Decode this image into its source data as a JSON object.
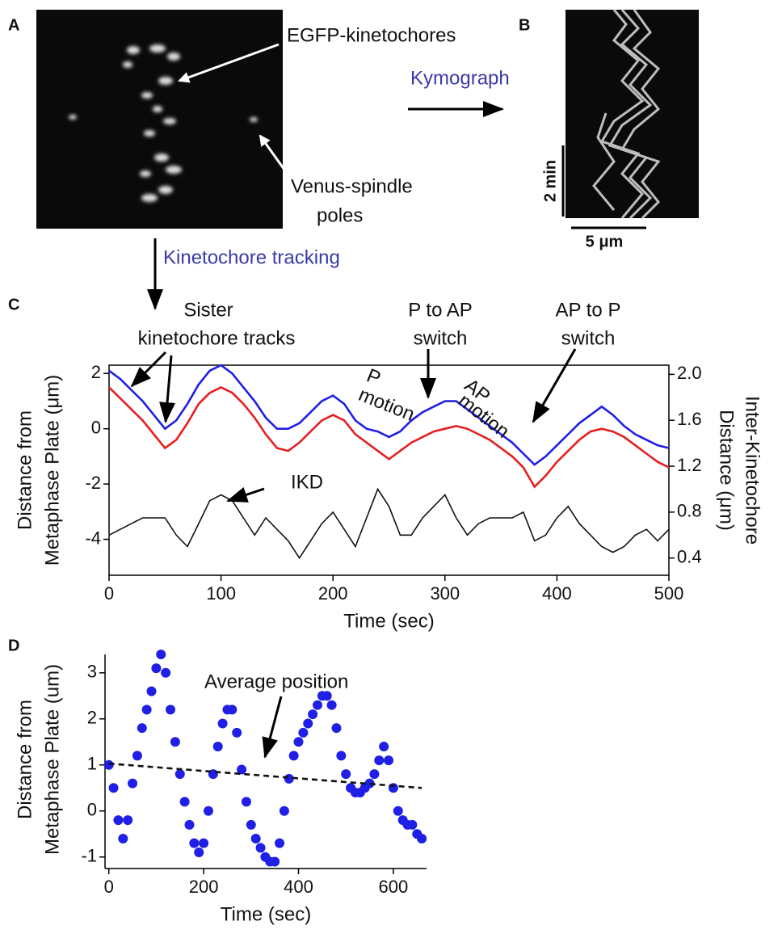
{
  "panels": {
    "A": {
      "label": "A",
      "annotations": [
        "EGFP-kinetochores",
        "Venus-spindle",
        "poles"
      ]
    },
    "B": {
      "label": "B",
      "scale_time": "2 min",
      "scale_length": "5 μm"
    },
    "kymograph_label": "Kymograph",
    "tracking_label": "Kinetochore tracking"
  },
  "chart_data": [
    {
      "type": "line",
      "panel": "C",
      "x_label": "Time (sec)",
      "y_label": [
        "Distance from",
        "Metaphase Plate (μm)"
      ],
      "y2_label": [
        "Inter-Kinetochore",
        "Distance (μm)"
      ],
      "annotations": [
        "Sister",
        "kinetochore tracks",
        "P to AP",
        "switch",
        "AP to P",
        "switch",
        "P",
        "motion",
        "AP",
        "motion",
        "IKD"
      ],
      "x": [
        0,
        10,
        20,
        30,
        40,
        50,
        60,
        70,
        80,
        90,
        100,
        110,
        120,
        130,
        140,
        150,
        160,
        170,
        180,
        190,
        200,
        210,
        220,
        230,
        240,
        250,
        260,
        270,
        280,
        290,
        300,
        310,
        320,
        330,
        340,
        350,
        360,
        370,
        380,
        390,
        400,
        410,
        420,
        430,
        440,
        450,
        460,
        470,
        480,
        490,
        500
      ],
      "series": [
        {
          "color": "#1f1fe6",
          "values": [
            2.1,
            1.8,
            1.4,
            1.0,
            0.5,
            0.0,
            0.3,
            0.9,
            1.6,
            2.1,
            2.3,
            2.0,
            1.5,
            1.0,
            0.4,
            0.0,
            0.0,
            0.2,
            0.6,
            1.0,
            1.2,
            0.9,
            0.3,
            0.0,
            -0.1,
            -0.3,
            -0.1,
            0.3,
            0.6,
            0.8,
            1.0,
            1.0,
            0.7,
            0.4,
            0.1,
            -0.2,
            -0.5,
            -0.9,
            -1.3,
            -1.0,
            -0.6,
            -0.2,
            0.2,
            0.5,
            0.8,
            0.5,
            0.1,
            -0.2,
            -0.4,
            -0.6,
            -0.7
          ]
        },
        {
          "color": "#e61f1f",
          "values": [
            1.5,
            1.1,
            0.7,
            0.3,
            -0.2,
            -0.7,
            -0.4,
            0.2,
            0.9,
            1.3,
            1.5,
            1.3,
            0.9,
            0.4,
            -0.2,
            -0.7,
            -0.8,
            -0.5,
            -0.1,
            0.3,
            0.5,
            0.3,
            -0.2,
            -0.5,
            -0.8,
            -1.1,
            -0.8,
            -0.5,
            -0.3,
            -0.1,
            0.0,
            0.1,
            0.0,
            -0.2,
            -0.4,
            -0.7,
            -1.0,
            -1.4,
            -2.1,
            -1.7,
            -1.2,
            -0.8,
            -0.4,
            -0.1,
            0.0,
            -0.1,
            -0.3,
            -0.6,
            -0.9,
            -1.2,
            -1.4
          ]
        },
        {
          "color": "#111111",
          "axis": "y2",
          "values": [
            0.6,
            0.65,
            0.7,
            0.75,
            0.75,
            0.75,
            0.6,
            0.5,
            0.7,
            0.9,
            0.95,
            0.9,
            0.75,
            0.6,
            0.75,
            0.65,
            0.55,
            0.4,
            0.55,
            0.7,
            0.8,
            0.65,
            0.5,
            0.75,
            1.0,
            0.85,
            0.6,
            0.6,
            0.75,
            0.85,
            0.95,
            0.75,
            0.6,
            0.7,
            0.75,
            0.75,
            0.75,
            0.8,
            0.55,
            0.6,
            0.75,
            0.85,
            0.7,
            0.6,
            0.5,
            0.45,
            0.5,
            0.6,
            0.65,
            0.55,
            0.65
          ]
        }
      ],
      "xlim": [
        0,
        500
      ],
      "xticks": [
        0,
        100,
        200,
        300,
        400,
        500
      ],
      "ylim": [
        -5.3,
        2.3
      ],
      "yticks": [
        -4,
        -2,
        0,
        2
      ],
      "y2lim": [
        0.25,
        2.08
      ],
      "y2ticks": [
        0.4,
        0.8,
        1.2,
        1.6,
        {
          "value": 2,
          "label": "2.0"
        }
      ],
      "frame": true
    },
    {
      "type": "line",
      "panel": "D",
      "x_label": "Time (sec)",
      "y_label": [
        "Distance from",
        "Metaphase Plate (um)"
      ],
      "annotations": [
        "Average position"
      ],
      "x": [
        0,
        10,
        20,
        30,
        40,
        50,
        60,
        70,
        80,
        90,
        100,
        110,
        120,
        130,
        140,
        150,
        160,
        170,
        180,
        190,
        200,
        210,
        220,
        230,
        240,
        250,
        260,
        270,
        280,
        290,
        300,
        310,
        320,
        330,
        340,
        350,
        360,
        370,
        380,
        390,
        400,
        410,
        420,
        430,
        440,
        450,
        460,
        470,
        480,
        490,
        500,
        510,
        520,
        530,
        540,
        550,
        560,
        570,
        580,
        590,
        600,
        610,
        620,
        630,
        640,
        650,
        660
      ],
      "series": [
        {
          "color": "#1f1fe6",
          "marker": true,
          "values": [
            1.0,
            0.5,
            -0.2,
            -0.6,
            -0.2,
            0.6,
            1.2,
            1.8,
            2.2,
            2.6,
            3.1,
            3.4,
            3.0,
            2.2,
            1.5,
            0.8,
            0.2,
            -0.3,
            -0.7,
            -0.9,
            -0.7,
            0.0,
            0.8,
            1.4,
            1.9,
            2.2,
            2.2,
            1.7,
            0.9,
            0.2,
            -0.3,
            -0.6,
            -0.8,
            -1.0,
            -1.1,
            -1.1,
            -0.7,
            0.0,
            0.7,
            1.2,
            1.5,
            1.7,
            1.9,
            2.1,
            2.3,
            2.5,
            2.5,
            2.3,
            1.8,
            1.2,
            0.8,
            0.5,
            0.4,
            0.4,
            0.5,
            0.6,
            0.8,
            1.1,
            1.4,
            1.1,
            0.5,
            0.0,
            -0.2,
            -0.3,
            -0.3,
            -0.5,
            -0.6
          ]
        },
        {
          "color": "#111111",
          "dash": true,
          "x": [
            0,
            660
          ],
          "values": [
            1.03,
            0.5
          ]
        }
      ],
      "xlim": [
        -8,
        670
      ],
      "xticks": [
        0,
        200,
        400,
        600
      ],
      "ylim": [
        -1.25,
        3.4
      ],
      "yticks": [
        -1,
        0,
        1,
        2,
        3
      ],
      "frame": false
    }
  ]
}
